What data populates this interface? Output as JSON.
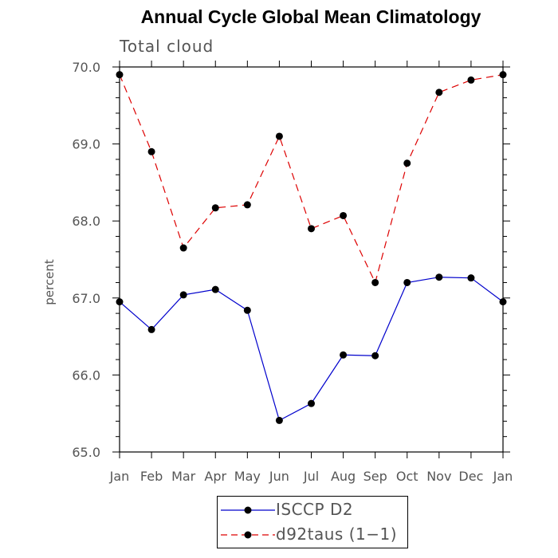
{
  "chart_data": {
    "type": "line",
    "title": "Annual Cycle Global Mean Climatology",
    "subtitle": "Total cloud",
    "xlabel": "",
    "ylabel": "percent",
    "categories": [
      "Jan",
      "Feb",
      "Mar",
      "Apr",
      "May",
      "Jun",
      "Jul",
      "Aug",
      "Sep",
      "Oct",
      "Nov",
      "Dec",
      "Jan"
    ],
    "ylim": [
      65.0,
      70.0
    ],
    "yticks": [
      "65.0",
      "66.0",
      "67.0",
      "68.0",
      "69.0",
      "70.0"
    ],
    "series": [
      {
        "name": "ISCCP D2",
        "color": "#0000cc",
        "dash": "solid",
        "values": [
          66.95,
          66.59,
          67.04,
          67.11,
          66.84,
          65.41,
          65.63,
          66.26,
          66.25,
          67.2,
          67.27,
          67.26,
          66.95
        ]
      },
      {
        "name": "d92taus (1−1)",
        "color": "#dd0000",
        "dash": "dashed",
        "values": [
          69.9,
          68.9,
          67.65,
          68.17,
          68.21,
          69.1,
          67.9,
          68.07,
          67.2,
          68.75,
          69.67,
          69.83,
          69.9
        ]
      }
    ],
    "grid": false,
    "legend_position": "bottom-center"
  }
}
